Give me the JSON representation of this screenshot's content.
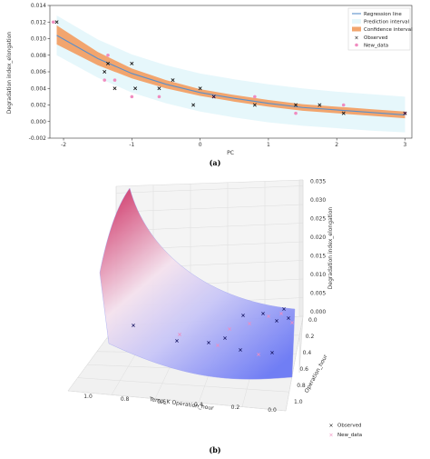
{
  "chart_data": [
    {
      "type": "line",
      "panel_label": "(a)",
      "xlabel": "PC",
      "ylabel": "Degradation index_elongation",
      "xlim": [
        -2.2,
        3.1
      ],
      "ylim": [
        -0.002,
        0.014
      ],
      "x_ticks": [
        -2,
        -1,
        0,
        1,
        2,
        3
      ],
      "x_tick_labels": [
        "-2",
        "-1",
        "0",
        "1",
        "2",
        "3"
      ],
      "y_ticks": [
        -0.002,
        0.0,
        0.002,
        0.004,
        0.006,
        0.008,
        0.01,
        0.012,
        0.014
      ],
      "y_tick_labels": [
        "-0.002",
        "0.000",
        "0.002",
        "0.004",
        "0.006",
        "0.008",
        "0.010",
        "0.012",
        "0.014"
      ],
      "legend_position": "top-right",
      "legend": [
        "Regression line",
        "Prediction interval",
        "Confidence interval",
        "Observed",
        "New_data"
      ],
      "colors": {
        "regression": "#5b8fc9",
        "prediction_band": "#e6f7fb",
        "confidence_band": "#f2a56e",
        "observed": "#111111",
        "new_data": "#f08cc0"
      },
      "regression_line": {
        "x": [
          -2.1,
          -1.5,
          -1.0,
          -0.5,
          0.0,
          0.5,
          1.0,
          1.5,
          2.0,
          2.5,
          3.0
        ],
        "y": [
          0.0104,
          0.0076,
          0.0058,
          0.0045,
          0.0035,
          0.0028,
          0.0022,
          0.0017,
          0.0014,
          0.0011,
          0.0008
        ]
      },
      "confidence_interval": {
        "lower": [
          0.0093,
          0.0068,
          0.0052,
          0.004,
          0.0031,
          0.0024,
          0.0018,
          0.0013,
          0.001,
          0.0007,
          0.0004
        ],
        "upper": [
          0.0116,
          0.0084,
          0.0064,
          0.005,
          0.0039,
          0.0032,
          0.0026,
          0.0021,
          0.0018,
          0.0015,
          0.0012
        ]
      },
      "prediction_interval": {
        "lower": [
          0.008,
          0.0053,
          0.0035,
          0.0022,
          0.0012,
          0.0005,
          -0.0001,
          -0.0005,
          -0.0008,
          -0.0011,
          -0.0013
        ],
        "upper": [
          0.0128,
          0.0099,
          0.0081,
          0.0068,
          0.0058,
          0.0051,
          0.0045,
          0.004,
          0.0036,
          0.0033,
          0.003
        ]
      },
      "observed": {
        "x": [
          -2.1,
          -1.4,
          -1.35,
          -1.25,
          -1.0,
          -0.95,
          -0.6,
          -0.4,
          -0.1,
          0.0,
          0.2,
          0.8,
          1.4,
          1.75,
          2.1,
          3.0
        ],
        "y": [
          0.012,
          0.006,
          0.007,
          0.004,
          0.007,
          0.004,
          0.004,
          0.005,
          0.002,
          0.004,
          0.003,
          0.002,
          0.002,
          0.002,
          0.001,
          0.001
        ]
      },
      "new_data": {
        "x": [
          -2.15,
          -1.4,
          -1.35,
          -1.25,
          -1.0,
          -0.6,
          0.2,
          0.8,
          1.4,
          2.1,
          3.0
        ],
        "y": [
          0.012,
          0.005,
          0.008,
          0.005,
          0.003,
          0.003,
          0.003,
          0.003,
          0.001,
          0.002,
          0.001
        ]
      }
    },
    {
      "type": "surface3d",
      "panel_label": "(b)",
      "xlabel": "Temp_K Operation_hour",
      "ylabel": "Operation_hour",
      "zlabel": "Degradation index_elongation",
      "x_tick_labels": [
        "1.0",
        "0.8",
        "0.6",
        "0.4",
        "0.2",
        "0.0"
      ],
      "y_tick_labels": [
        "0.0",
        "0.2",
        "0.4",
        "0.6",
        "0.8",
        "1.0"
      ],
      "z_tick_labels": [
        "0.000",
        "0.005",
        "0.010",
        "0.015",
        "0.020",
        "0.025",
        "0.030",
        "0.035"
      ],
      "legend_position": "bottom-right",
      "legend": [
        "Observed",
        "New_data"
      ],
      "colors": {
        "surface_high": "#d44a78",
        "surface_mid": "#f4e2ee",
        "surface_low": "#6a78f5",
        "observed": "#1a1a66",
        "new_data": "#f08cc0"
      }
    }
  ]
}
